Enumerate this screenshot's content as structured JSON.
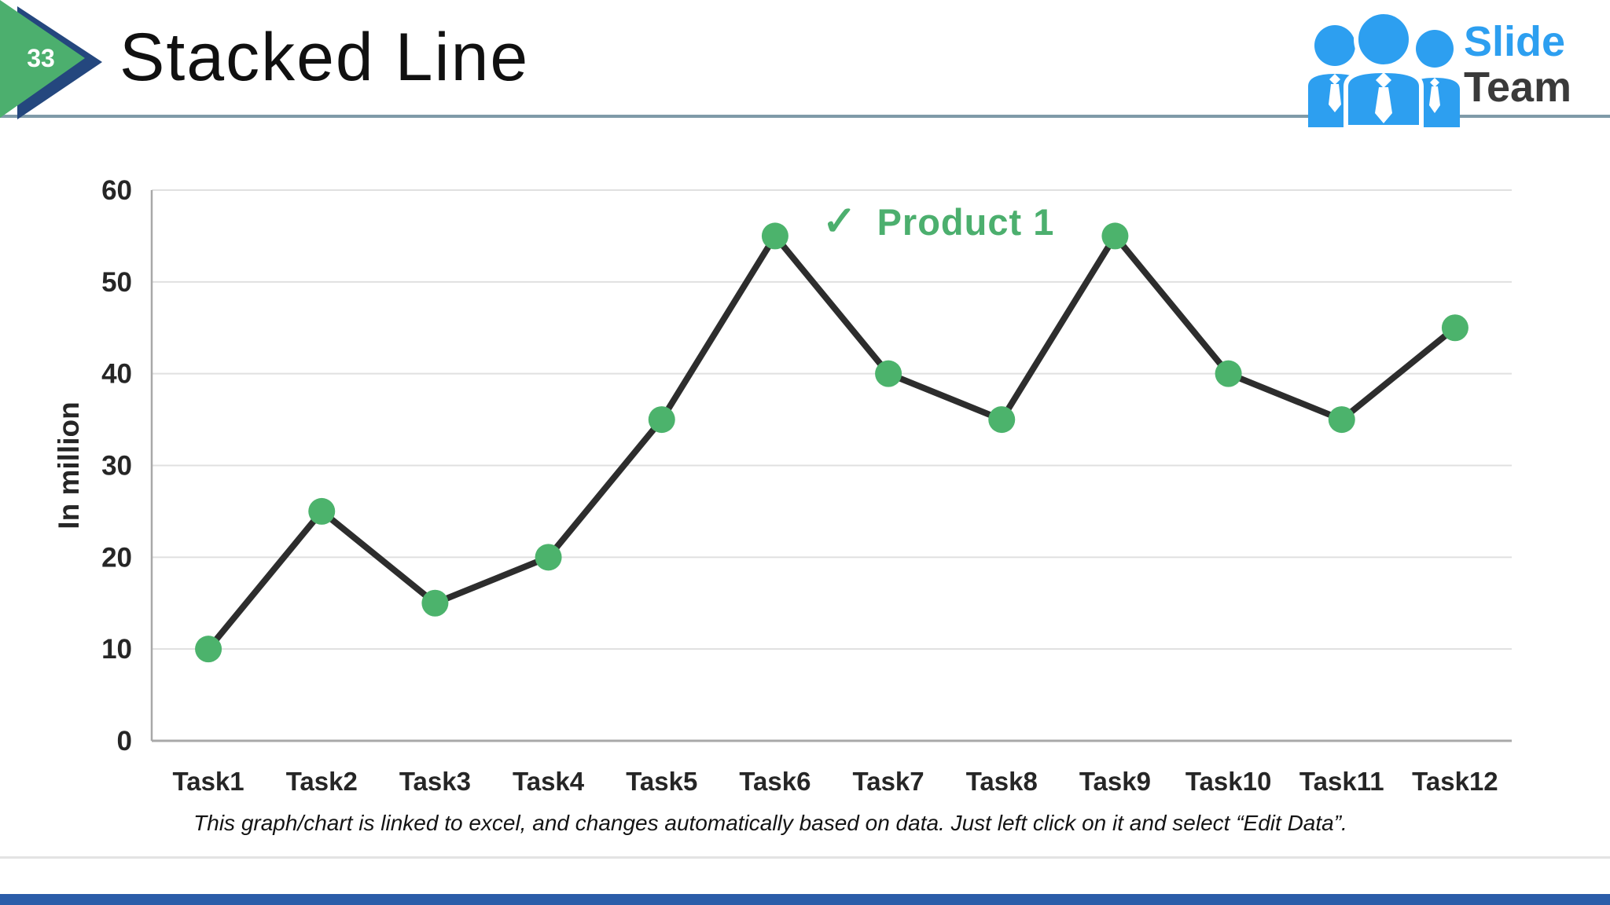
{
  "header": {
    "page_number": "33",
    "title": "Stacked Line",
    "accent_green": "#4CAF6E",
    "accent_navy": "#24477E",
    "underline_color": "#7F9AA8"
  },
  "logo": {
    "line1": "Slide",
    "line2": "Team",
    "people_color": "#2D9FF0",
    "text_blue": "#2D9FF0",
    "text_dark": "#3A3A3A"
  },
  "legend": {
    "check": "✓",
    "label": "Product 1",
    "color": "#4CAF6E"
  },
  "footer": {
    "note": "This graph/chart is linked to excel, and changes automatically based on data. Just left click on it and select “Edit Data”.",
    "bottom_bar_color": "#2B5DA9"
  },
  "chart_data": {
    "type": "line",
    "categories": [
      "Task1",
      "Task2",
      "Task3",
      "Task4",
      "Task5",
      "Task6",
      "Task7",
      "Task8",
      "Task9",
      "Task10",
      "Task11",
      "Task12"
    ],
    "series": [
      {
        "name": "Product 1",
        "values": [
          10,
          25,
          15,
          20,
          35,
          55,
          40,
          35,
          55,
          40,
          35,
          45
        ]
      }
    ],
    "title": "",
    "xlabel": "",
    "ylabel": "In million",
    "ylim": [
      0,
      60
    ],
    "yticks": [
      0,
      10,
      20,
      30,
      40,
      50,
      60
    ],
    "grid": true,
    "legend_position": "inside-top-right",
    "line_color": "#2D2D2D",
    "marker_color": "#4CB36C",
    "gridline_color": "#E0E0E0",
    "axis_color": "#A8A8A8"
  }
}
